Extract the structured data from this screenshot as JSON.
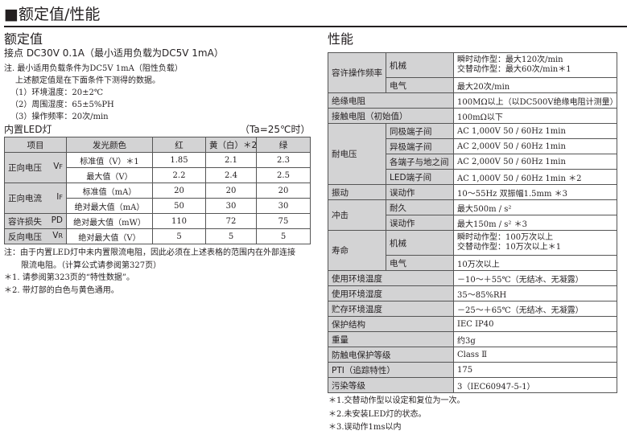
{
  "title": "■额定值/性能",
  "left": {
    "heading": "额定值",
    "contact": "接点 DC30V 0.1A（最小适用负载为DC5V 1mA）",
    "notes": [
      "注. 最小适用负载条件为DC5V 1mA（阻性负载）",
      "上述额定值是在下面条件下测得的数据。",
      "（1）环境温度：20±2℃",
      "（2）周围湿度：65±5%PH",
      "（3）操作频率：20次/min"
    ],
    "led_title": "内置LED灯",
    "led_cond": "（Ta=25℃时）",
    "table": {
      "headers": [
        "项目",
        "发光颜色",
        "红",
        "黄（白）＊2",
        "绿"
      ],
      "groups": [
        {
          "item": "正向电压",
          "sym": "V",
          "sub": "F",
          "rows": [
            {
              "label": "标准值（V）＊1",
              "values": [
                "1.85",
                "2.1",
                "2.3"
              ]
            },
            {
              "label": "最大值（V）",
              "values": [
                "2.2",
                "2.4",
                "2.5"
              ]
            }
          ]
        },
        {
          "item": "正向电流",
          "sym": "I",
          "sub": "F",
          "rows": [
            {
              "label": "标准值（mA）",
              "values": [
                "20",
                "20",
                "20"
              ]
            },
            {
              "label": "绝对最大值（mA）",
              "values": [
                "50",
                "30",
                "30"
              ]
            }
          ]
        },
        {
          "item": "容许损失",
          "sym": "PD",
          "sub": "",
          "rows": [
            {
              "label": "绝对最大值（mW）",
              "values": [
                "110",
                "72",
                "75"
              ]
            }
          ]
        },
        {
          "item": "反向电压",
          "sym": "V",
          "sub": "R",
          "rows": [
            {
              "label": "绝对最大值（V）",
              "values": [
                "5",
                "5",
                "5"
              ]
            }
          ]
        }
      ]
    },
    "footnotes": [
      "注：由于内置LED灯中未内置限流电阻，因此必须在上述表格的范围内在外部连接",
      "限流电阻。（计算公式请参阅第327页）",
      "＊1. 请参阅第323页的“特性数据”。",
      "＊2. 带灯部的白色与黄色通用。"
    ]
  },
  "right": {
    "heading": "性能",
    "rows": {
      "freq": {
        "label": "容许操作频率",
        "mech": "机械",
        "mech_v1": "瞬时动作型：最大120次/min",
        "mech_v2": "交替动作型：最大60次/min＊1",
        "elec": "电气",
        "elec_v": "最大20次/min"
      },
      "insulation": {
        "label": "绝缘电阻",
        "value": "100MΩ以上（以DC500V绝缘电阻计测量）"
      },
      "contact_res": {
        "label": "接触电阻（初始值）",
        "value": "100mΩ以下"
      },
      "withstand": {
        "label": "耐电压",
        "items": [
          {
            "k": "同极端子间",
            "v": "AC 1,000V 50 / 60Hz 1min"
          },
          {
            "k": "异极端子间",
            "v": "AC 2,000V 50 / 60Hz 1min"
          },
          {
            "k": "各端子与地之间",
            "v": "AC 2,000V 50 / 60Hz 1min"
          },
          {
            "k": "LED端子间",
            "v": "AC 1,000V 50 / 60Hz 1min ＊2"
          }
        ]
      },
      "vibration": {
        "label": "振动",
        "k": "误动作",
        "v": "10～55Hz 双振幅1.5mm ＊3"
      },
      "shock": {
        "label": "冲击",
        "items": [
          {
            "k": "耐久",
            "v": "最大500m / s²"
          },
          {
            "k": "误动作",
            "v": "最大150m / s² ＊3"
          }
        ]
      },
      "life": {
        "label": "寿命",
        "mech": "机械",
        "mech_v1": "瞬时动作型：100万次以上",
        "mech_v2": "交替动作型：10万次以上＊1",
        "elec": "电气",
        "elec_v": "10万次以上"
      },
      "simple": [
        {
          "k": "使用环境温度",
          "v": "－10～＋55℃（无结冰、无凝露）"
        },
        {
          "k": "使用环境湿度",
          "v": "35～85%RH"
        },
        {
          "k": "贮存环境温度",
          "v": "－25～＋65℃（无结冰、无凝露）"
        },
        {
          "k": "保护结构",
          "v": "IEC IP40"
        },
        {
          "k": "重量",
          "v": "约3g"
        },
        {
          "k": "防触电保护等级",
          "v": "Class Ⅱ"
        },
        {
          "k": "PTI（追踪特性）",
          "v": "175"
        },
        {
          "k": "污染等级",
          "v": "3（IEC60947-5-1）"
        }
      ]
    },
    "footnotes": [
      "＊1.交替动作型以设定和复位为一次。",
      "＊2.未安装LED灯的状态。",
      "＊3.误动作1ms以内"
    ]
  }
}
